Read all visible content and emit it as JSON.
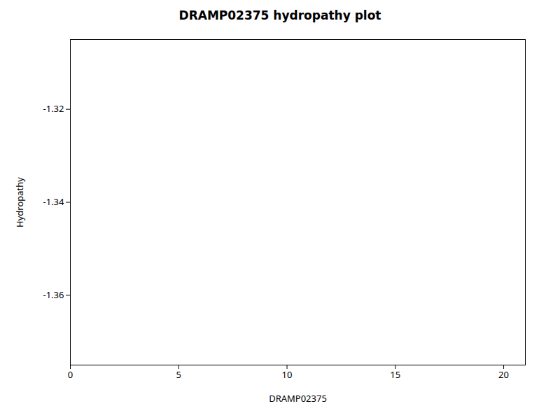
{
  "chart_data": {
    "type": "line",
    "title": "DRAMP02375 hydropathy plot",
    "xlabel": "DRAMP02375",
    "ylabel": "Hydropathy",
    "xlim": [
      0,
      21
    ],
    "ylim": [
      -1.375,
      -1.305
    ],
    "xticks": [
      0,
      5,
      10,
      15,
      20
    ],
    "yticks": [
      -1.36,
      -1.34,
      -1.32
    ],
    "grid": false,
    "series": []
  }
}
